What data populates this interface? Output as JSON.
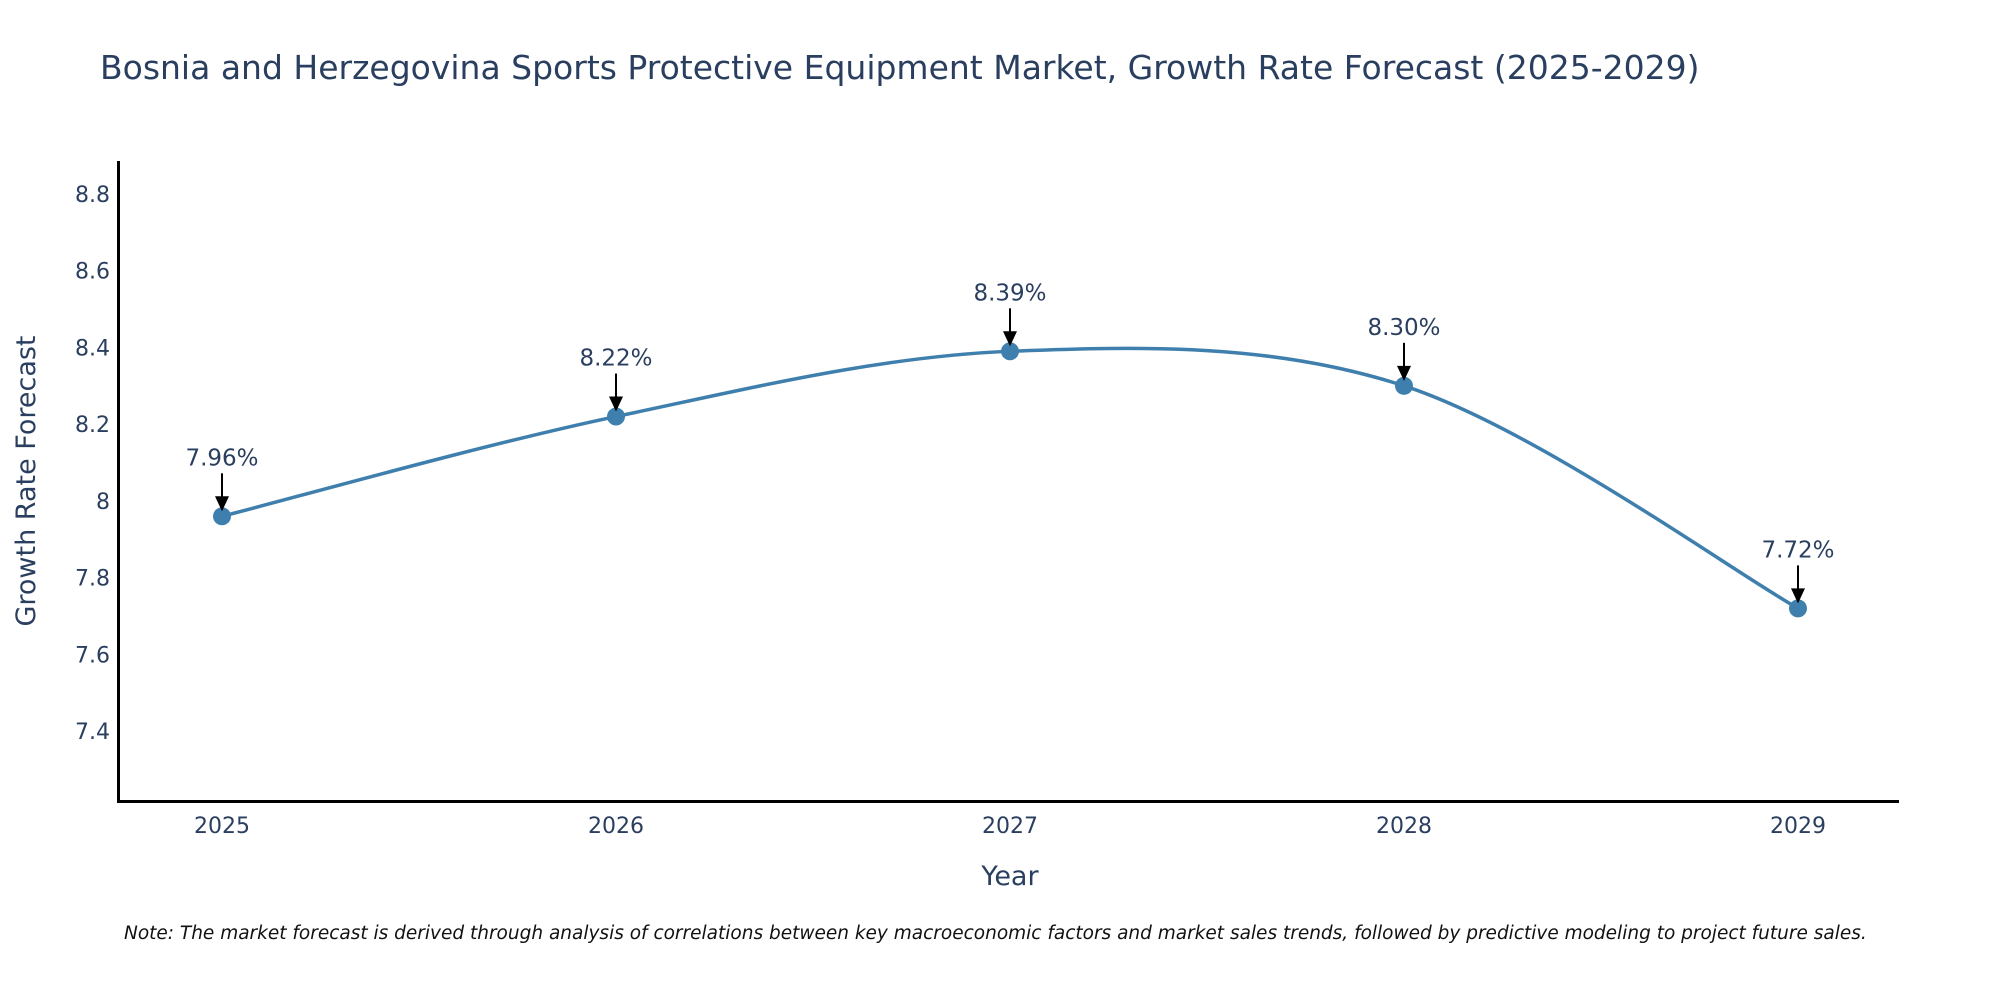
{
  "chart_data": {
    "type": "line",
    "title": "Bosnia and Herzegovina Sports Protective Equipment Market, Growth Rate Forecast (2025-2029)",
    "xlabel": "Year",
    "ylabel": "Growth Rate Forecast",
    "categories": [
      "2025",
      "2026",
      "2027",
      "2028",
      "2029"
    ],
    "values": [
      7.96,
      8.22,
      8.39,
      8.3,
      7.72
    ],
    "data_labels": [
      "7.96%",
      "8.22%",
      "8.39%",
      "8.30%",
      "7.72%"
    ],
    "y_ticks": [
      7.4,
      7.6,
      7.8,
      8,
      8.2,
      8.4,
      8.6,
      8.8
    ],
    "y_tick_labels": [
      "7.4",
      "7.6",
      "7.8",
      "8",
      "8.2",
      "8.4",
      "8.6",
      "8.8"
    ],
    "ylim": [
      7.218,
      8.886
    ],
    "grid": false,
    "line_color": "#3f7fad",
    "marker_color": "#3f7fad",
    "line_shape": "spline"
  },
  "note": "Note: The market forecast is derived through analysis of correlations between key macroeconomic factors and market sales trends, followed by predictive modeling to project future sales."
}
